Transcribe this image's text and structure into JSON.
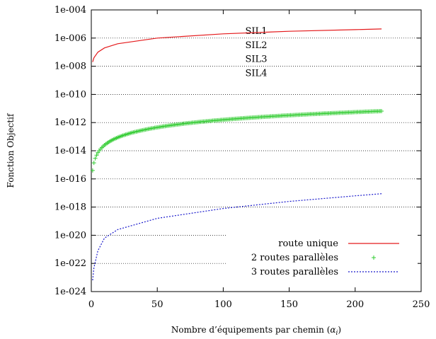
{
  "chart_data": {
    "type": "line",
    "xlabel_text": "Nombre d’équipements par chemin (",
    "xlabel_alpha": "α",
    "xlabel_sub": "i",
    "xlabel_close": ")",
    "ylabel": "Fonction Objectif",
    "xlim": [
      0,
      250
    ],
    "ylim_log10": [
      -24,
      -4
    ],
    "y_scale": "log",
    "x_ticks": [
      0,
      50,
      100,
      150,
      200,
      250
    ],
    "y_ticks": [
      "1e-024",
      "1e-022",
      "1e-020",
      "1e-018",
      "1e-016",
      "1e-014",
      "1e-012",
      "1e-010",
      "1e-008",
      "1e-006",
      "1e-004"
    ],
    "sil_labels": [
      {
        "text": "SIL1",
        "value_log10": -5.5
      },
      {
        "text": "SIL2",
        "value_log10": -6.5
      },
      {
        "text": "SIL3",
        "value_log10": -7.5
      },
      {
        "text": "SIL4",
        "value_log10": -8.5
      }
    ],
    "grid": "dotted horizontal at decades",
    "legend_position": "bottom-right",
    "series": [
      {
        "name": "route unique",
        "style": "line",
        "color": "#e41a1c",
        "x": [
          1,
          2,
          5,
          10,
          20,
          50,
          100,
          150,
          200,
          220
        ],
        "y_log10": [
          -7.7,
          -7.4,
          -7.0,
          -6.7,
          -6.4,
          -6.0,
          -5.7,
          -5.52,
          -5.4,
          -5.35
        ]
      },
      {
        "name": "2 routes parallèles",
        "style": "plus-markers",
        "color": "#33cc33",
        "x_range": [
          1,
          220
        ],
        "log10_y_at_1": -15.4,
        "log10_y_per_log10_x": 1.8
      },
      {
        "name": "3 routes parallèles",
        "style": "dashed",
        "color": "#1a1acc",
        "x": [
          1,
          2,
          5,
          10,
          20,
          50,
          100,
          150,
          200,
          220
        ],
        "y_log10": [
          -23.2,
          -22.3,
          -21.1,
          -20.2,
          -19.6,
          -18.8,
          -18.1,
          -17.6,
          -17.2,
          -17.05
        ]
      }
    ]
  }
}
